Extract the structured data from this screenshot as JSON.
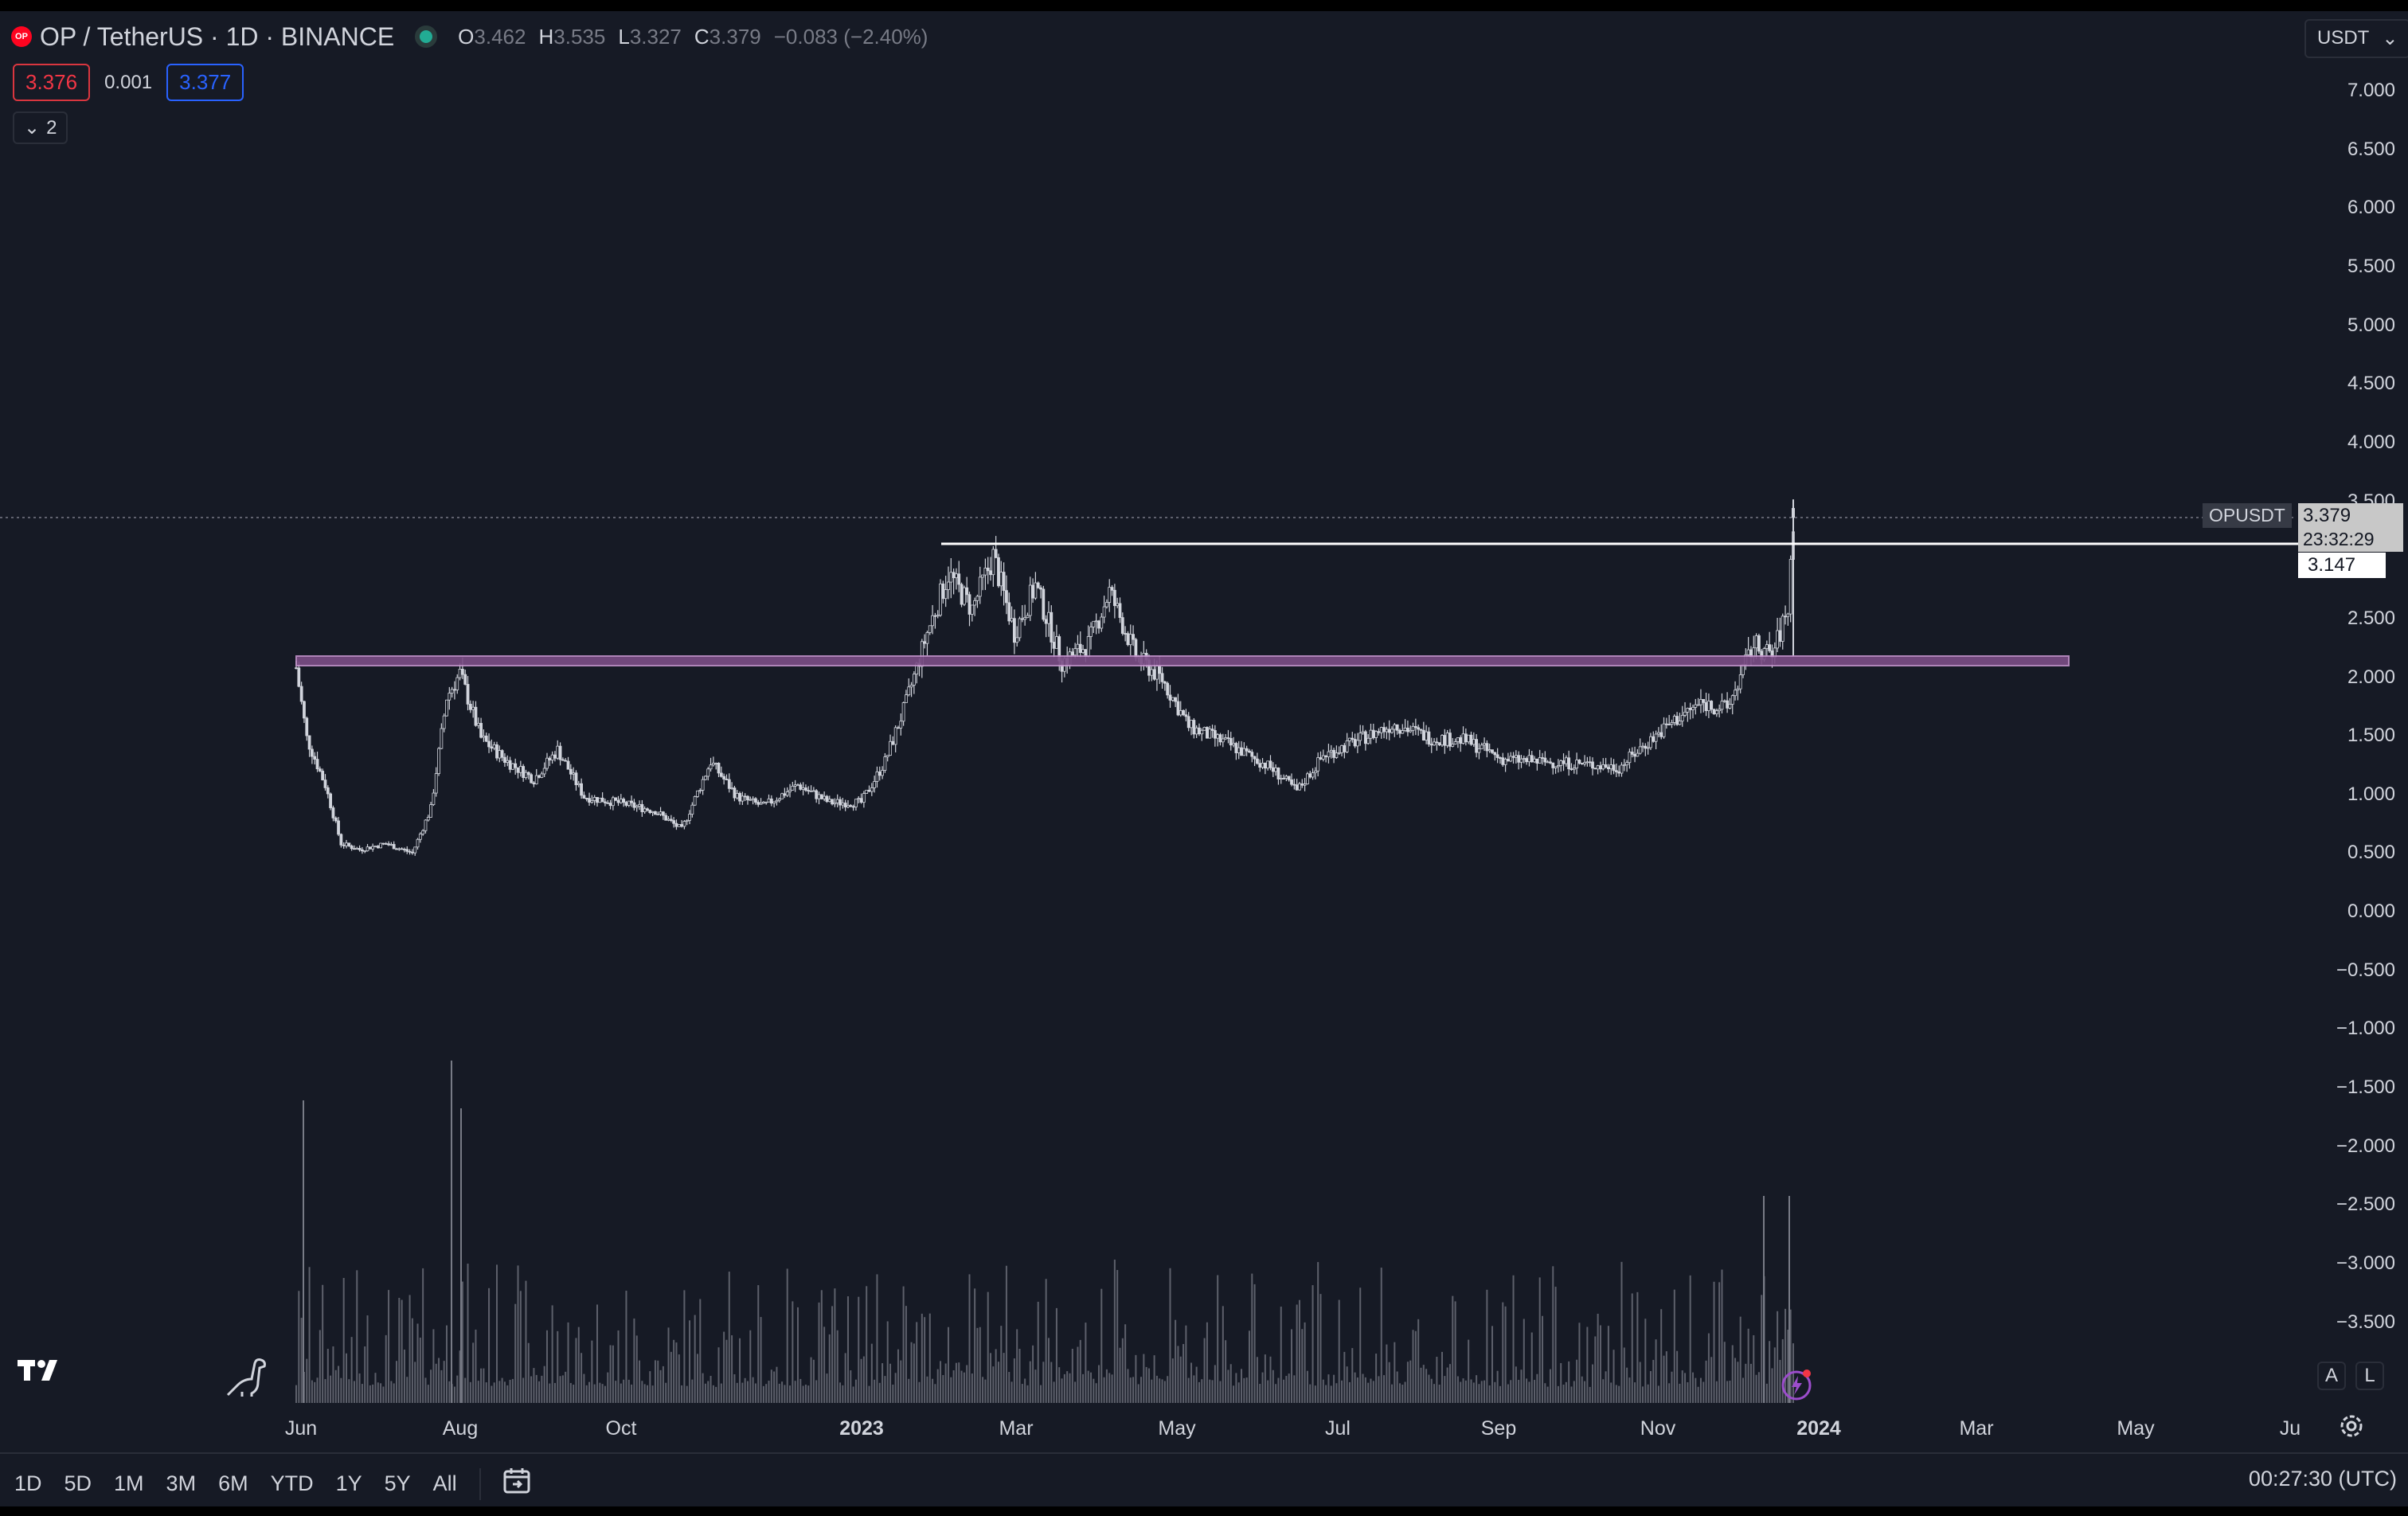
{
  "header": {
    "coin_icon_text": "OP",
    "symbol_title": "OP / TetherUS · 1D · BINANCE",
    "ohlc": {
      "o_label": "O",
      "o_value": "3.462",
      "h_label": "H",
      "h_value": "3.535",
      "l_label": "L",
      "l_value": "3.327",
      "c_label": "C",
      "c_value": "3.379",
      "change": "−0.083 (−2.40%)"
    },
    "bid": "3.376",
    "spread": "0.001",
    "ask": "3.377",
    "collapsed_indicators": "2",
    "currency": "USDT"
  },
  "price_axis": [
    "7.000",
    "6.500",
    "6.000",
    "5.500",
    "5.000",
    "4.500",
    "4.000",
    "3.500",
    "2.500",
    "2.000",
    "1.500",
    "1.000",
    "0.500",
    "0.000",
    "−0.500",
    "−1.000",
    "−1.500",
    "−2.000",
    "−2.500",
    "−3.000",
    "−3.500"
  ],
  "time_axis": [
    {
      "label": "Jun",
      "bold": false
    },
    {
      "label": "Aug",
      "bold": false
    },
    {
      "label": "Oct",
      "bold": false
    },
    {
      "label": "2023",
      "bold": true
    },
    {
      "label": "Mar",
      "bold": false
    },
    {
      "label": "May",
      "bold": false
    },
    {
      "label": "Jul",
      "bold": false
    },
    {
      "label": "Sep",
      "bold": false
    },
    {
      "label": "Nov",
      "bold": false
    },
    {
      "label": "2024",
      "bold": true
    },
    {
      "label": "Mar",
      "bold": false
    },
    {
      "label": "May",
      "bold": false
    },
    {
      "label": "Ju",
      "bold": false
    }
  ],
  "tags": {
    "symbol": "OPUSDT",
    "last_price": "3.379",
    "countdown": "23:32:29",
    "horizontal_line_price": "3.147"
  },
  "bottom_toolbar": {
    "ranges": [
      "1D",
      "5D",
      "1M",
      "3M",
      "6M",
      "YTD",
      "1Y",
      "5Y",
      "All"
    ],
    "clock": "00:27:30 (UTC)"
  },
  "side_buttons": {
    "auto": "A",
    "log": "L"
  },
  "colors": {
    "background": "#161a25",
    "candle": "#d1d4dc",
    "support_zone": "#9c6fa8",
    "resistance_line": "#ffffff",
    "volume": "#5d606b",
    "bid": "#f23645",
    "ask": "#2962ff"
  },
  "chart_data": {
    "type": "candlestick",
    "title": "OP / TetherUS · 1D · BINANCE",
    "x_range": [
      "2022-06",
      "2024-06"
    ],
    "ylim": [
      -3.7,
      7.3
    ],
    "price_path": [
      {
        "date": "2022-06-01",
        "close": 2.1
      },
      {
        "date": "2022-06-05",
        "close": 1.5
      },
      {
        "date": "2022-06-12",
        "close": 1.1
      },
      {
        "date": "2022-06-18",
        "close": 0.6
      },
      {
        "date": "2022-06-25",
        "close": 0.55
      },
      {
        "date": "2022-07-05",
        "close": 0.6
      },
      {
        "date": "2022-07-15",
        "close": 0.52
      },
      {
        "date": "2022-07-22",
        "close": 0.9
      },
      {
        "date": "2022-07-28",
        "close": 1.85
      },
      {
        "date": "2022-08-02",
        "close": 2.05
      },
      {
        "date": "2022-08-10",
        "close": 1.5
      },
      {
        "date": "2022-08-20",
        "close": 1.3
      },
      {
        "date": "2022-08-30",
        "close": 1.15
      },
      {
        "date": "2022-09-08",
        "close": 1.4
      },
      {
        "date": "2022-09-18",
        "close": 1.0
      },
      {
        "date": "2022-10-01",
        "close": 0.95
      },
      {
        "date": "2022-10-15",
        "close": 0.88
      },
      {
        "date": "2022-10-25",
        "close": 0.72
      },
      {
        "date": "2022-11-05",
        "close": 1.3
      },
      {
        "date": "2022-11-15",
        "close": 1.0
      },
      {
        "date": "2022-11-25",
        "close": 0.92
      },
      {
        "date": "2022-12-08",
        "close": 1.1
      },
      {
        "date": "2022-12-20",
        "close": 0.95
      },
      {
        "date": "2023-01-01",
        "close": 0.95
      },
      {
        "date": "2023-01-10",
        "close": 1.3
      },
      {
        "date": "2023-01-18",
        "close": 1.8
      },
      {
        "date": "2023-01-26",
        "close": 2.4
      },
      {
        "date": "2023-02-03",
        "close": 2.9
      },
      {
        "date": "2023-02-12",
        "close": 2.6
      },
      {
        "date": "2023-02-20",
        "close": 3.05
      },
      {
        "date": "2023-02-28",
        "close": 2.4
      },
      {
        "date": "2023-03-08",
        "close": 2.8
      },
      {
        "date": "2023-03-18",
        "close": 2.15
      },
      {
        "date": "2023-03-28",
        "close": 2.3
      },
      {
        "date": "2023-04-05",
        "close": 2.75
      },
      {
        "date": "2023-04-15",
        "close": 2.2
      },
      {
        "date": "2023-04-25",
        "close": 2.0
      },
      {
        "date": "2023-05-05",
        "close": 1.6
      },
      {
        "date": "2023-05-20",
        "close": 1.45
      },
      {
        "date": "2023-06-05",
        "close": 1.25
      },
      {
        "date": "2023-06-15",
        "close": 1.05
      },
      {
        "date": "2023-06-25",
        "close": 1.35
      },
      {
        "date": "2023-07-10",
        "close": 1.5
      },
      {
        "date": "2023-07-22",
        "close": 1.62
      },
      {
        "date": "2023-08-05",
        "close": 1.5
      },
      {
        "date": "2023-08-18",
        "close": 1.48
      },
      {
        "date": "2023-09-01",
        "close": 1.32
      },
      {
        "date": "2023-09-15",
        "close": 1.3
      },
      {
        "date": "2023-10-01",
        "close": 1.28
      },
      {
        "date": "2023-10-15",
        "close": 1.25
      },
      {
        "date": "2023-10-25",
        "close": 1.45
      },
      {
        "date": "2023-11-05",
        "close": 1.65
      },
      {
        "date": "2023-11-15",
        "close": 1.8
      },
      {
        "date": "2023-11-25",
        "close": 1.75
      },
      {
        "date": "2023-12-05",
        "close": 2.3
      },
      {
        "date": "2023-12-12",
        "close": 2.2
      },
      {
        "date": "2023-12-18",
        "close": 2.6
      },
      {
        "date": "2023-12-20",
        "close": 3.379
      }
    ],
    "annotations": {
      "support_zone": [
        2.12,
        2.18
      ],
      "horizontal_line": 3.147,
      "last_price": 3.379
    }
  }
}
